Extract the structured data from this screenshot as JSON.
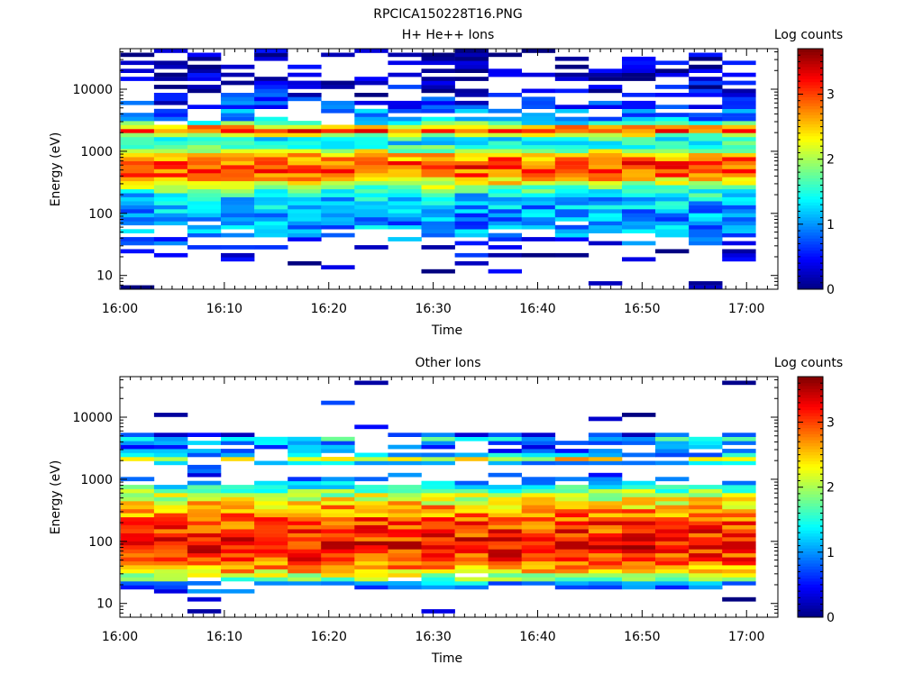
{
  "figure_title": "RPCICA150228T16.PNG",
  "chart_data": [
    {
      "type": "heatmap",
      "title": "H+ He++ Ions",
      "xlabel": "Time",
      "ylabel": "Energy (eV)",
      "colorbar_label": "Log counts",
      "colorbar_ticks": [
        "0",
        "1",
        "2",
        "3"
      ],
      "colorbar_range": [
        0,
        3.7
      ],
      "x_ticks": [
        "16:00",
        "16:10",
        "16:20",
        "16:30",
        "16:40",
        "16:50",
        "17:00"
      ],
      "xlim": [
        "16:00",
        "17:03"
      ],
      "y_ticks": [
        "10",
        "100",
        "1000",
        "10000"
      ],
      "ylim": [
        6,
        45000
      ],
      "y_scale": "log",
      "colormap": "jet",
      "time_bins": [
        "16:01:40",
        "16:04:52",
        "16:08:04",
        "16:11:16",
        "16:14:28",
        "16:17:40",
        "16:20:52",
        "16:24:04",
        "16:27:16",
        "16:30:28",
        "16:33:40",
        "16:36:52",
        "16:40:04",
        "16:43:16",
        "16:46:28",
        "16:49:40",
        "16:52:52",
        "16:56:04",
        "16:59:16"
      ],
      "profile": [
        [
          8,
          0.2
        ],
        [
          12,
          0.1
        ],
        [
          25,
          0.3
        ],
        [
          40,
          0.8
        ],
        [
          60,
          1.0
        ],
        [
          90,
          1.0
        ],
        [
          130,
          1.1
        ],
        [
          180,
          1.2
        ],
        [
          220,
          1.5
        ],
        [
          270,
          1.9
        ],
        [
          330,
          2.4
        ],
        [
          420,
          2.8
        ],
        [
          550,
          3.0
        ],
        [
          700,
          2.9
        ],
        [
          900,
          2.4
        ],
        [
          1200,
          1.6
        ],
        [
          1500,
          1.3
        ],
        [
          1800,
          1.9
        ],
        [
          2100,
          2.9
        ],
        [
          2300,
          3.2
        ],
        [
          2600,
          2.1
        ],
        [
          3200,
          1.0
        ],
        [
          4500,
          1.0
        ],
        [
          6000,
          0.6
        ],
        [
          10000,
          0.3
        ],
        [
          20000,
          0.2
        ],
        [
          40000,
          0.2
        ]
      ],
      "fill_profile": [
        [
          8,
          0.04
        ],
        [
          12,
          0.04
        ],
        [
          25,
          0.15
        ],
        [
          40,
          0.55
        ],
        [
          60,
          0.95
        ],
        [
          100,
          1.0
        ],
        [
          200,
          1.0
        ],
        [
          300,
          1.0
        ],
        [
          600,
          1.0
        ],
        [
          900,
          1.0
        ],
        [
          1200,
          1.0
        ],
        [
          2000,
          1.0
        ],
        [
          2600,
          1.0
        ],
        [
          3200,
          0.8
        ],
        [
          5000,
          0.7
        ],
        [
          8000,
          0.5
        ],
        [
          15000,
          0.45
        ],
        [
          30000,
          0.4
        ],
        [
          45000,
          0.25
        ]
      ]
    },
    {
      "type": "heatmap",
      "title": "Other Ions",
      "xlabel": "Time",
      "ylabel": "Energy (eV)",
      "colorbar_label": "Log counts",
      "colorbar_ticks": [
        "0",
        "1",
        "2",
        "3"
      ],
      "colorbar_range": [
        0,
        3.7
      ],
      "x_ticks": [
        "16:00",
        "16:10",
        "16:20",
        "16:30",
        "16:40",
        "16:50",
        "17:00"
      ],
      "xlim": [
        "16:00",
        "17:03"
      ],
      "y_ticks": [
        "10",
        "100",
        "1000",
        "10000"
      ],
      "ylim": [
        6,
        45000
      ],
      "y_scale": "log",
      "colormap": "jet",
      "time_bins": [
        "16:01:40",
        "16:04:52",
        "16:08:04",
        "16:11:16",
        "16:14:28",
        "16:17:40",
        "16:20:52",
        "16:24:04",
        "16:27:16",
        "16:30:28",
        "16:33:40",
        "16:36:52",
        "16:40:04",
        "16:43:16",
        "16:46:28",
        "16:49:40",
        "16:52:52",
        "16:56:04",
        "16:59:16"
      ],
      "profile": [
        [
          8,
          0.2
        ],
        [
          12,
          0.2
        ],
        [
          18,
          0.8
        ],
        [
          21,
          1.0
        ],
        [
          25,
          1.8
        ],
        [
          35,
          2.6
        ],
        [
          50,
          3.0
        ],
        [
          80,
          3.2
        ],
        [
          120,
          3.1
        ],
        [
          200,
          3.0
        ],
        [
          350,
          2.6
        ],
        [
          500,
          2.2
        ],
        [
          700,
          1.7
        ],
        [
          900,
          0.9
        ],
        [
          1200,
          0.6
        ],
        [
          1600,
          0.4
        ],
        [
          1900,
          1.3
        ],
        [
          2100,
          2.5
        ],
        [
          2300,
          1.6
        ],
        [
          2600,
          0.8
        ],
        [
          3500,
          0.8
        ],
        [
          4500,
          1.4
        ],
        [
          5200,
          0.6
        ],
        [
          10000,
          0.3
        ],
        [
          40000,
          0.3
        ]
      ],
      "fill_profile": [
        [
          8,
          0.04
        ],
        [
          12,
          0.04
        ],
        [
          16,
          0.15
        ],
        [
          20,
          0.9
        ],
        [
          50,
          1.0
        ],
        [
          400,
          1.0
        ],
        [
          800,
          1.0
        ],
        [
          950,
          0.45
        ],
        [
          1300,
          0.08
        ],
        [
          1700,
          0.05
        ],
        [
          1900,
          0.9
        ],
        [
          2700,
          0.9
        ],
        [
          3000,
          0.4
        ],
        [
          4000,
          0.8
        ],
        [
          5200,
          0.7
        ],
        [
          6000,
          0.04
        ],
        [
          45000,
          0.02
        ]
      ]
    }
  ]
}
